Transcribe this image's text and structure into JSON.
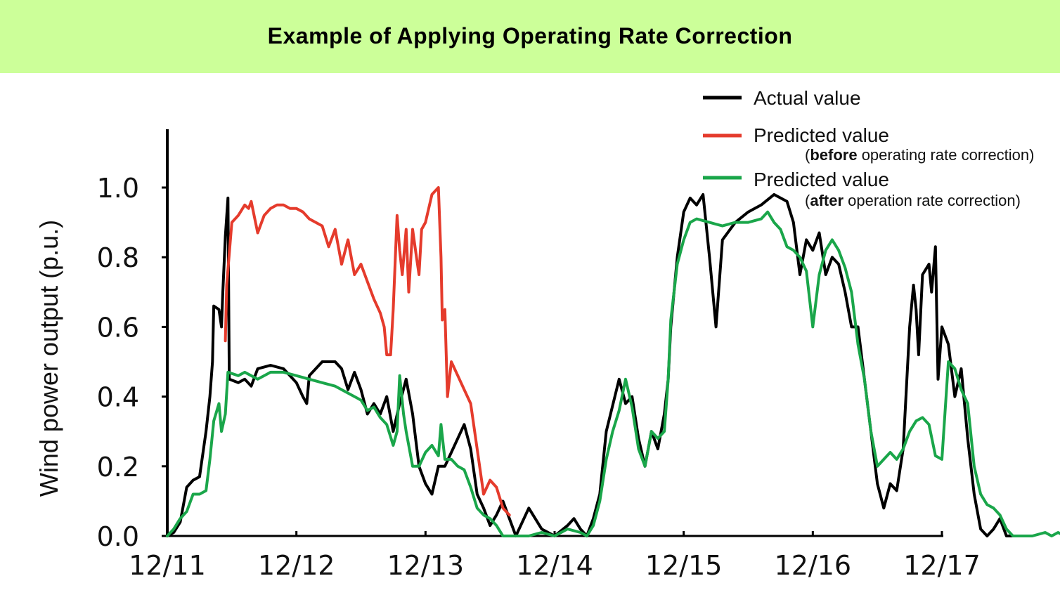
{
  "title": "Example of Applying Operating Rate Correction",
  "colors": {
    "banner": "#ccff99",
    "actual": "#000000",
    "before": "#e53b2c",
    "after": "#1aa64a"
  },
  "legend": [
    {
      "label": "Actual value",
      "sub_open": "",
      "sub_bold": "",
      "sub_rest": ""
    },
    {
      "label": "Predicted value",
      "sub_open": "(",
      "sub_bold": "before",
      "sub_rest": " operating rate correction)"
    },
    {
      "label": "Predicted value",
      "sub_open": "(",
      "sub_bold": "after",
      "sub_rest": " operation rate correction)"
    }
  ],
  "chart_data": {
    "type": "line",
    "title": "Example of Applying Operating Rate Correction",
    "xlabel": "",
    "ylabel": "Wind power output (p.u.)",
    "xlim": [
      "12/11",
      "12/17"
    ],
    "ylim": [
      0.0,
      1.0
    ],
    "x_tick_labels": [
      "12/11",
      "12/12",
      "12/13",
      "12/14",
      "12/15",
      "12/16",
      "12/17"
    ],
    "y_tick_labels": [
      "0.0",
      "0.2",
      "0.4",
      "0.6",
      "0.8",
      "1.0"
    ],
    "grid": false,
    "legend_position": "top-right",
    "x_units": "days after 12/11 00:00",
    "series": [
      {
        "name": "Actual value",
        "color": "#000000",
        "points": [
          [
            0,
            0
          ],
          [
            0.05,
            0.01
          ],
          [
            0.1,
            0.04
          ],
          [
            0.15,
            0.14
          ],
          [
            0.2,
            0.16
          ],
          [
            0.25,
            0.17
          ],
          [
            0.3,
            0.3
          ],
          [
            0.33,
            0.4
          ],
          [
            0.35,
            0.5
          ],
          [
            0.36,
            0.66
          ],
          [
            0.4,
            0.65
          ],
          [
            0.42,
            0.6
          ],
          [
            0.43,
            0.7
          ],
          [
            0.45,
            0.86
          ],
          [
            0.47,
            0.97
          ],
          [
            0.48,
            0.45
          ],
          [
            0.55,
            0.44
          ],
          [
            0.6,
            0.45
          ],
          [
            0.65,
            0.43
          ],
          [
            0.7,
            0.48
          ],
          [
            0.8,
            0.49
          ],
          [
            0.9,
            0.48
          ],
          [
            0.95,
            0.46
          ],
          [
            1.0,
            0.44
          ],
          [
            1.05,
            0.4
          ],
          [
            1.08,
            0.38
          ],
          [
            1.1,
            0.46
          ],
          [
            1.2,
            0.5
          ],
          [
            1.3,
            0.5
          ],
          [
            1.35,
            0.48
          ],
          [
            1.4,
            0.42
          ],
          [
            1.45,
            0.47
          ],
          [
            1.5,
            0.42
          ],
          [
            1.55,
            0.35
          ],
          [
            1.6,
            0.38
          ],
          [
            1.65,
            0.35
          ],
          [
            1.7,
            0.4
          ],
          [
            1.75,
            0.3
          ],
          [
            1.8,
            0.38
          ],
          [
            1.85,
            0.45
          ],
          [
            1.9,
            0.35
          ],
          [
            1.95,
            0.2
          ],
          [
            2.0,
            0.15
          ],
          [
            2.05,
            0.12
          ],
          [
            2.1,
            0.2
          ],
          [
            2.15,
            0.2
          ],
          [
            2.2,
            0.24
          ],
          [
            2.3,
            0.32
          ],
          [
            2.35,
            0.25
          ],
          [
            2.4,
            0.12
          ],
          [
            2.45,
            0.08
          ],
          [
            2.5,
            0.03
          ],
          [
            2.55,
            0.06
          ],
          [
            2.6,
            0.1
          ],
          [
            2.65,
            0.05
          ],
          [
            2.7,
            0.0
          ],
          [
            2.8,
            0.08
          ],
          [
            2.9,
            0.02
          ],
          [
            3.0,
            0.0
          ],
          [
            3.1,
            0.03
          ],
          [
            3.15,
            0.05
          ],
          [
            3.2,
            0.02
          ],
          [
            3.25,
            0.0
          ],
          [
            3.3,
            0.05
          ],
          [
            3.35,
            0.12
          ],
          [
            3.4,
            0.3
          ],
          [
            3.5,
            0.45
          ],
          [
            3.55,
            0.38
          ],
          [
            3.6,
            0.4
          ],
          [
            3.65,
            0.28
          ],
          [
            3.7,
            0.2
          ],
          [
            3.75,
            0.3
          ],
          [
            3.8,
            0.25
          ],
          [
            3.85,
            0.35
          ],
          [
            3.88,
            0.45
          ],
          [
            3.9,
            0.6
          ],
          [
            3.95,
            0.8
          ],
          [
            4.0,
            0.93
          ],
          [
            4.05,
            0.97
          ],
          [
            4.1,
            0.95
          ],
          [
            4.15,
            0.98
          ],
          [
            4.2,
            0.8
          ],
          [
            4.25,
            0.6
          ],
          [
            4.3,
            0.85
          ],
          [
            4.4,
            0.9
          ],
          [
            4.5,
            0.93
          ],
          [
            4.6,
            0.95
          ],
          [
            4.7,
            0.98
          ],
          [
            4.8,
            0.96
          ],
          [
            4.85,
            0.9
          ],
          [
            4.9,
            0.75
          ],
          [
            4.95,
            0.85
          ],
          [
            5.0,
            0.82
          ],
          [
            5.05,
            0.87
          ],
          [
            5.1,
            0.75
          ],
          [
            5.15,
            0.8
          ],
          [
            5.2,
            0.78
          ],
          [
            5.25,
            0.7
          ],
          [
            5.3,
            0.6
          ],
          [
            5.35,
            0.6
          ],
          [
            5.4,
            0.45
          ],
          [
            5.45,
            0.3
          ],
          [
            5.5,
            0.15
          ],
          [
            5.55,
            0.08
          ],
          [
            5.6,
            0.15
          ],
          [
            5.65,
            0.13
          ],
          [
            5.7,
            0.25
          ],
          [
            5.75,
            0.6
          ],
          [
            5.78,
            0.72
          ],
          [
            5.8,
            0.65
          ],
          [
            5.82,
            0.52
          ],
          [
            5.85,
            0.75
          ],
          [
            5.9,
            0.78
          ],
          [
            5.92,
            0.7
          ],
          [
            5.95,
            0.83
          ],
          [
            5.97,
            0.45
          ],
          [
            6.0,
            0.6
          ],
          [
            6.05,
            0.55
          ],
          [
            6.1,
            0.4
          ],
          [
            6.15,
            0.48
          ],
          [
            6.2,
            0.28
          ],
          [
            6.25,
            0.12
          ],
          [
            6.3,
            0.02
          ],
          [
            6.35,
            0.0
          ],
          [
            6.4,
            0.02
          ],
          [
            6.45,
            0.05
          ],
          [
            6.5,
            0.0
          ],
          [
            6.6,
            0.0
          ]
        ]
      },
      {
        "name": "Predicted value (before operating rate correction)",
        "color": "#e53b2c",
        "points": [
          [
            0.45,
            0.56
          ],
          [
            0.46,
            0.72
          ],
          [
            0.5,
            0.9
          ],
          [
            0.55,
            0.92
          ],
          [
            0.6,
            0.95
          ],
          [
            0.63,
            0.94
          ],
          [
            0.65,
            0.96
          ],
          [
            0.7,
            0.87
          ],
          [
            0.75,
            0.92
          ],
          [
            0.8,
            0.94
          ],
          [
            0.85,
            0.95
          ],
          [
            0.9,
            0.95
          ],
          [
            0.95,
            0.94
          ],
          [
            1.0,
            0.94
          ],
          [
            1.05,
            0.93
          ],
          [
            1.1,
            0.91
          ],
          [
            1.15,
            0.9
          ],
          [
            1.2,
            0.89
          ],
          [
            1.25,
            0.83
          ],
          [
            1.3,
            0.88
          ],
          [
            1.35,
            0.78
          ],
          [
            1.4,
            0.85
          ],
          [
            1.45,
            0.75
          ],
          [
            1.5,
            0.78
          ],
          [
            1.55,
            0.73
          ],
          [
            1.6,
            0.68
          ],
          [
            1.65,
            0.64
          ],
          [
            1.68,
            0.6
          ],
          [
            1.7,
            0.52
          ],
          [
            1.73,
            0.52
          ],
          [
            1.75,
            0.65
          ],
          [
            1.78,
            0.92
          ],
          [
            1.8,
            0.82
          ],
          [
            1.82,
            0.75
          ],
          [
            1.85,
            0.88
          ],
          [
            1.87,
            0.7
          ],
          [
            1.9,
            0.88
          ],
          [
            1.93,
            0.8
          ],
          [
            1.95,
            0.75
          ],
          [
            1.97,
            0.88
          ],
          [
            2.0,
            0.9
          ],
          [
            2.05,
            0.98
          ],
          [
            2.1,
            1.0
          ],
          [
            2.12,
            0.8
          ],
          [
            2.13,
            0.62
          ],
          [
            2.15,
            0.65
          ],
          [
            2.17,
            0.4
          ],
          [
            2.2,
            0.5
          ],
          [
            2.25,
            0.46
          ],
          [
            2.3,
            0.42
          ],
          [
            2.35,
            0.38
          ],
          [
            2.4,
            0.25
          ],
          [
            2.45,
            0.12
          ],
          [
            2.5,
            0.16
          ],
          [
            2.55,
            0.14
          ],
          [
            2.6,
            0.08
          ],
          [
            2.65,
            0.06
          ]
        ]
      },
      {
        "name": "Predicted value (after operation rate correction)",
        "color": "#1aa64a",
        "points": [
          [
            0,
            0
          ],
          [
            0.05,
            0.02
          ],
          [
            0.1,
            0.05
          ],
          [
            0.15,
            0.07
          ],
          [
            0.2,
            0.12
          ],
          [
            0.25,
            0.12
          ],
          [
            0.3,
            0.13
          ],
          [
            0.33,
            0.22
          ],
          [
            0.36,
            0.33
          ],
          [
            0.4,
            0.38
          ],
          [
            0.42,
            0.3
          ],
          [
            0.45,
            0.35
          ],
          [
            0.47,
            0.47
          ],
          [
            0.55,
            0.46
          ],
          [
            0.6,
            0.47
          ],
          [
            0.65,
            0.46
          ],
          [
            0.7,
            0.45
          ],
          [
            0.8,
            0.47
          ],
          [
            0.9,
            0.47
          ],
          [
            1.0,
            0.46
          ],
          [
            1.1,
            0.45
          ],
          [
            1.2,
            0.44
          ],
          [
            1.3,
            0.43
          ],
          [
            1.4,
            0.41
          ],
          [
            1.5,
            0.39
          ],
          [
            1.55,
            0.36
          ],
          [
            1.6,
            0.37
          ],
          [
            1.65,
            0.34
          ],
          [
            1.7,
            0.32
          ],
          [
            1.75,
            0.26
          ],
          [
            1.78,
            0.3
          ],
          [
            1.8,
            0.46
          ],
          [
            1.83,
            0.35
          ],
          [
            1.85,
            0.3
          ],
          [
            1.9,
            0.2
          ],
          [
            1.95,
            0.2
          ],
          [
            2.0,
            0.24
          ],
          [
            2.05,
            0.26
          ],
          [
            2.1,
            0.23
          ],
          [
            2.12,
            0.32
          ],
          [
            2.15,
            0.22
          ],
          [
            2.2,
            0.22
          ],
          [
            2.25,
            0.2
          ],
          [
            2.3,
            0.19
          ],
          [
            2.35,
            0.14
          ],
          [
            2.4,
            0.08
          ],
          [
            2.45,
            0.06
          ],
          [
            2.5,
            0.05
          ],
          [
            2.55,
            0.03
          ],
          [
            2.6,
            0.0
          ],
          [
            2.7,
            0.0
          ],
          [
            2.8,
            0.0
          ],
          [
            2.9,
            0.01
          ],
          [
            3.0,
            0.0
          ],
          [
            3.1,
            0.02
          ],
          [
            3.2,
            0.01
          ],
          [
            3.25,
            0.0
          ],
          [
            3.3,
            0.03
          ],
          [
            3.35,
            0.1
          ],
          [
            3.4,
            0.22
          ],
          [
            3.45,
            0.3
          ],
          [
            3.5,
            0.36
          ],
          [
            3.55,
            0.45
          ],
          [
            3.6,
            0.37
          ],
          [
            3.65,
            0.25
          ],
          [
            3.7,
            0.2
          ],
          [
            3.75,
            0.3
          ],
          [
            3.8,
            0.28
          ],
          [
            3.85,
            0.3
          ],
          [
            3.88,
            0.45
          ],
          [
            3.9,
            0.62
          ],
          [
            3.95,
            0.78
          ],
          [
            4.0,
            0.85
          ],
          [
            4.05,
            0.9
          ],
          [
            4.1,
            0.91
          ],
          [
            4.2,
            0.9
          ],
          [
            4.3,
            0.89
          ],
          [
            4.4,
            0.9
          ],
          [
            4.5,
            0.9
          ],
          [
            4.6,
            0.91
          ],
          [
            4.65,
            0.93
          ],
          [
            4.7,
            0.9
          ],
          [
            4.75,
            0.88
          ],
          [
            4.8,
            0.83
          ],
          [
            4.85,
            0.82
          ],
          [
            4.9,
            0.8
          ],
          [
            4.95,
            0.76
          ],
          [
            5.0,
            0.6
          ],
          [
            5.05,
            0.75
          ],
          [
            5.1,
            0.82
          ],
          [
            5.15,
            0.85
          ],
          [
            5.2,
            0.82
          ],
          [
            5.25,
            0.77
          ],
          [
            5.3,
            0.7
          ],
          [
            5.35,
            0.55
          ],
          [
            5.4,
            0.45
          ],
          [
            5.45,
            0.3
          ],
          [
            5.5,
            0.2
          ],
          [
            5.55,
            0.22
          ],
          [
            5.6,
            0.24
          ],
          [
            5.65,
            0.22
          ],
          [
            5.7,
            0.25
          ],
          [
            5.75,
            0.3
          ],
          [
            5.8,
            0.33
          ],
          [
            5.85,
            0.34
          ],
          [
            5.9,
            0.32
          ],
          [
            5.95,
            0.23
          ],
          [
            6.0,
            0.22
          ],
          [
            6.05,
            0.5
          ],
          [
            6.1,
            0.48
          ],
          [
            6.15,
            0.42
          ],
          [
            6.2,
            0.38
          ],
          [
            6.25,
            0.2
          ],
          [
            6.3,
            0.12
          ],
          [
            6.35,
            0.09
          ],
          [
            6.4,
            0.08
          ],
          [
            6.45,
            0.06
          ],
          [
            6.5,
            0.02
          ],
          [
            6.55,
            0.0
          ],
          [
            6.7,
            0.0
          ],
          [
            6.8,
            0.01
          ],
          [
            6.85,
            0.0
          ],
          [
            6.9,
            0.01
          ],
          [
            6.95,
            0.0
          ],
          [
            7.0,
            0.0
          ]
        ]
      }
    ]
  }
}
